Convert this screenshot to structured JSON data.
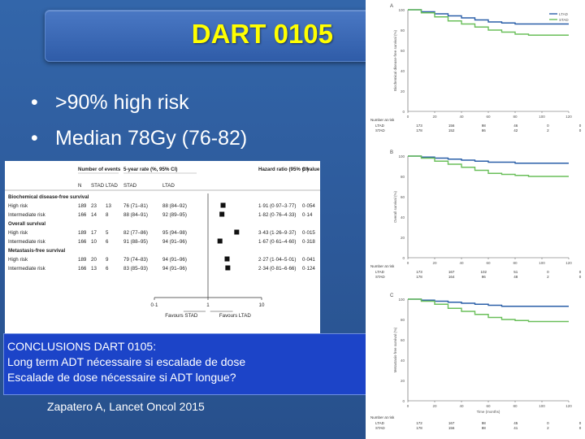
{
  "slide": {
    "title": "DART 0105",
    "bullets": [
      ">90% high risk",
      "Median 78Gy (76-82)"
    ],
    "conclusion": {
      "heading": "CONCLUSIONS DART 0105:",
      "line1": "Long term ADT nécessaire si escalade de dose",
      "line2": "Escalade de dose nécessaire si ADT longue?"
    },
    "reference": "Zapatero A, Lancet Oncol 2015"
  },
  "forest_plot": {
    "headers": {
      "events": "Number of events",
      "rate": "5-year rate (%, 95% CI)",
      "hr": "Hazard ratio (95% CI)",
      "p": "p value",
      "n": "N",
      "stad": "STAD",
      "ltad": "LTAD",
      "stad2": "STAD",
      "ltad2": "LTAD"
    },
    "sections": [
      {
        "title": "Biochemical disease-free survival",
        "rows": [
          {
            "label": "High risk",
            "n": "189",
            "stad": "23",
            "ltad": "13",
            "rate_stad": "76 (71–81)",
            "rate_ltad": "88 (84–92)",
            "hr_text": "1·91 (0·97–3·77)",
            "p": "0·054",
            "hr": 1.91
          },
          {
            "label": "Intermediate risk",
            "n": "166",
            "stad": "14",
            "ltad": "8",
            "rate_stad": "88 (84–91)",
            "rate_ltad": "92 (89–95)",
            "hr_text": "1·82 (0·76–4·33)",
            "p": "0·14",
            "hr": 1.82
          }
        ]
      },
      {
        "title": "Overall survival",
        "rows": [
          {
            "label": "High risk",
            "n": "189",
            "stad": "17",
            "ltad": "5",
            "rate_stad": "82 (77–86)",
            "rate_ltad": "95 (94–98)",
            "hr_text": "3·43 (1·26–9·37)",
            "p": "0·015",
            "hr": 3.43
          },
          {
            "label": "Intermediate risk",
            "n": "166",
            "stad": "10",
            "ltad": "6",
            "rate_stad": "91 (88–95)",
            "rate_ltad": "94 (91–96)",
            "hr_text": "1·67 (0·61–4·60)",
            "p": "0·318",
            "hr": 1.67
          }
        ]
      },
      {
        "title": "Metastasis-free survival",
        "rows": [
          {
            "label": "High risk",
            "n": "189",
            "stad": "20",
            "ltad": "9",
            "rate_stad": "79 (74–83)",
            "rate_ltad": "94 (91–96)",
            "hr_text": "2·27 (1·04–5·01)",
            "p": "0·041",
            "hr": 2.27
          },
          {
            "label": "Intermediate risk",
            "n": "166",
            "stad": "13",
            "ltad": "6",
            "rate_stad": "83 (85–93)",
            "rate_ltad": "94 (91–96)",
            "hr_text": "2·34 (0·81–6·66)",
            "p": "0·124",
            "hr": 2.34
          }
        ]
      }
    ],
    "axis": {
      "ticks": [
        "0·1",
        "1",
        "10"
      ],
      "favours_left": "Favours STAD",
      "favours_right": "Favours LTAD",
      "xlim": [
        0.1,
        10
      ]
    }
  },
  "chart_data": {
    "type": "line",
    "panels": [
      {
        "panel": "A",
        "ylabel": "Biochemical disease-free survival (%)",
        "yticks": [
          "0",
          "20",
          "40",
          "60",
          "80",
          "100"
        ],
        "series": [
          {
            "name": "LTAD",
            "x": [
              0,
              10,
              20,
              30,
              40,
              50,
              60,
              70,
              80,
              90,
              100,
              110,
              120
            ],
            "y": [
              100,
              98,
              96,
              94,
              92,
              90,
              88,
              87,
              86,
              86,
              86,
              86,
              86
            ]
          },
          {
            "name": "STAD",
            "x": [
              0,
              10,
              20,
              30,
              40,
              50,
              60,
              70,
              80,
              90,
              100,
              110,
              120
            ],
            "y": [
              100,
              97,
              93,
              89,
              86,
              83,
              80,
              78,
              76,
              75,
              75,
              75,
              75
            ]
          }
        ]
      },
      {
        "panel": "B",
        "ylabel": "Overall survival (%)",
        "yticks": [
          "0",
          "20",
          "40",
          "60",
          "80",
          "100"
        ],
        "series": [
          {
            "name": "LTAD",
            "x": [
              0,
              10,
              20,
              30,
              40,
              50,
              60,
              70,
              80,
              90,
              100,
              110,
              120
            ],
            "y": [
              100,
              99,
              98,
              97,
              96,
              95,
              94,
              94,
              93,
              93,
              93,
              93,
              93
            ]
          },
          {
            "name": "STAD",
            "x": [
              0,
              10,
              20,
              30,
              40,
              50,
              60,
              70,
              80,
              90,
              100,
              110,
              120
            ],
            "y": [
              100,
              98,
              95,
              92,
              89,
              86,
              83,
              82,
              81,
              80,
              80,
              80,
              80
            ]
          }
        ]
      },
      {
        "panel": "C",
        "ylabel": "Metastasis-free survival (%)",
        "yticks": [
          "0",
          "20",
          "40",
          "60",
          "80",
          "100"
        ],
        "series": [
          {
            "name": "LTAD",
            "x": [
              0,
              10,
              20,
              30,
              40,
              50,
              60,
              70,
              80,
              90,
              100,
              110,
              120
            ],
            "y": [
              100,
              99,
              98,
              97,
              96,
              95,
              94,
              93,
              93,
              93,
              93,
              93,
              93
            ]
          },
          {
            "name": "STAD",
            "x": [
              0,
              10,
              20,
              30,
              40,
              50,
              60,
              70,
              80,
              90,
              100,
              110,
              120
            ],
            "y": [
              100,
              98,
              95,
              91,
              88,
              85,
              82,
              80,
              79,
              78,
              78,
              78,
              78
            ]
          }
        ]
      }
    ],
    "xticks": [
      "0",
      "20",
      "40",
      "60",
      "80",
      "100",
      "120"
    ],
    "xlabel": "Time (months)",
    "xlim": [
      0,
      120
    ],
    "ylim": [
      0,
      100
    ],
    "legend": [
      "LTAD",
      "STAD"
    ],
    "risk_table": {
      "title": "Number at risk",
      "panels": [
        {
          "LTAD": [
            "173",
            "156",
            "98",
            "46",
            "0",
            "0"
          ],
          "STAD": [
            "178",
            "152",
            "86",
            "42",
            "2",
            "0"
          ]
        },
        {
          "LTAD": [
            "173",
            "167",
            "102",
            "51",
            "0",
            "0"
          ],
          "STAD": [
            "178",
            "164",
            "96",
            "48",
            "2",
            "0"
          ]
        },
        {
          "LTAD": [
            "172",
            "167",
            "98",
            "45",
            "0",
            "0"
          ],
          "STAD": [
            "178",
            "156",
            "88",
            "41",
            "2",
            "0"
          ]
        }
      ]
    },
    "colors": {
      "LTAD": "#2a5fa8",
      "STAD": "#6abf5a"
    }
  }
}
